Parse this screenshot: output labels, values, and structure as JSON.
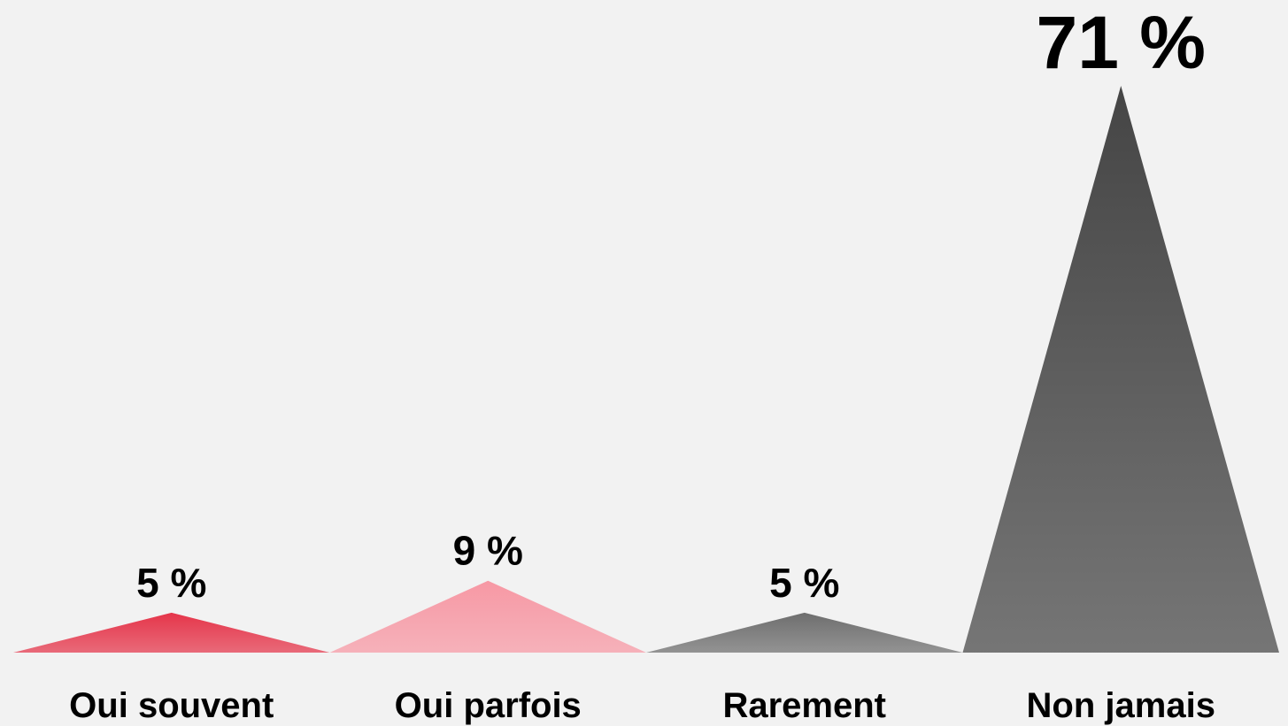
{
  "chart_data": {
    "type": "peak",
    "categories": [
      "Oui souvent",
      "Oui parfois",
      "Rarement",
      "Non jamais"
    ],
    "values": [
      5,
      9,
      5,
      71
    ],
    "value_labels": [
      "5 %",
      "9 %",
      "5 %",
      "71 %"
    ],
    "colors": [
      "#e5354a",
      "#f798a4",
      "#6e6e6e",
      "#454545"
    ]
  }
}
